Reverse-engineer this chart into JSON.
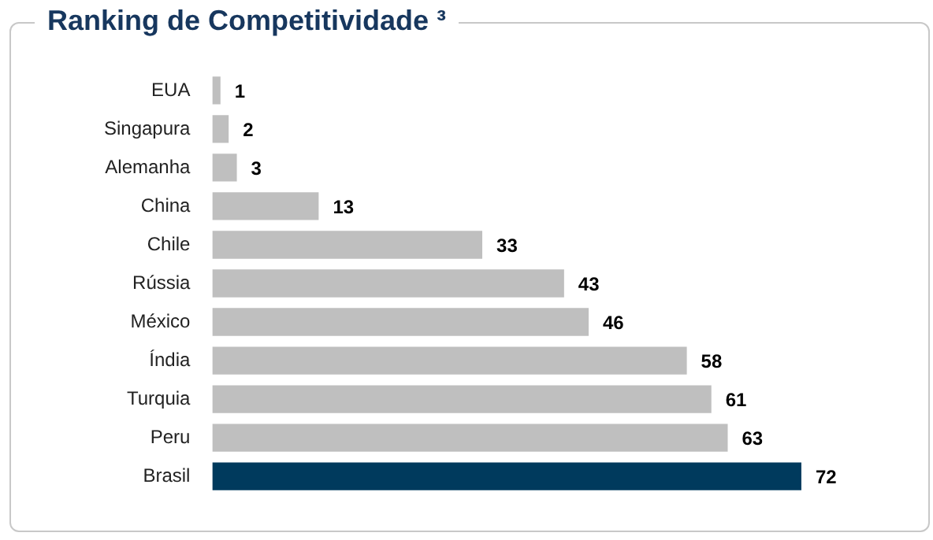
{
  "chart_data": {
    "type": "bar",
    "orientation": "horizontal",
    "title": "Ranking de Competitividade ³",
    "categories": [
      "EUA",
      "Singapura",
      "Alemanha",
      "China",
      "Chile",
      "Rússia",
      "México",
      "Índia",
      "Turquia",
      "Peru",
      "Brasil"
    ],
    "values": [
      1,
      2,
      3,
      13,
      33,
      43,
      46,
      58,
      61,
      63,
      72
    ],
    "colors": [
      "#bfbfbf",
      "#bfbfbf",
      "#bfbfbf",
      "#bfbfbf",
      "#bfbfbf",
      "#bfbfbf",
      "#bfbfbf",
      "#bfbfbf",
      "#bfbfbf",
      "#bfbfbf",
      "#003a5d"
    ],
    "data_labels": true,
    "tick_labels": "y",
    "legend": false
  }
}
